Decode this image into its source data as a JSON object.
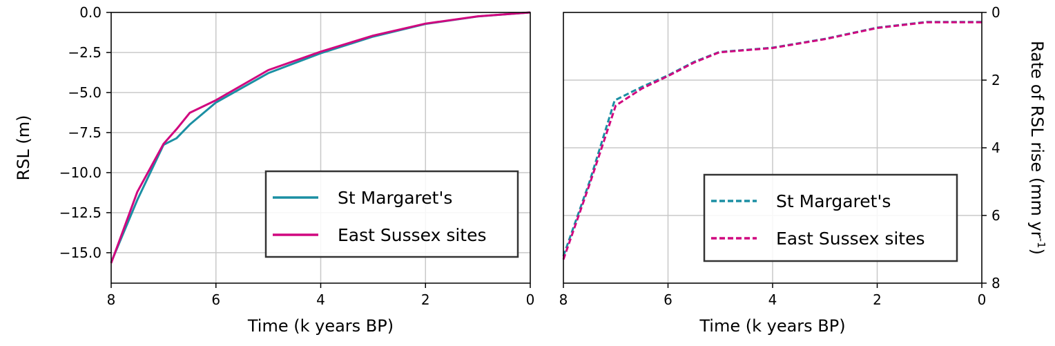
{
  "colors": {
    "teal": "#1b8fa3",
    "pink": "#d0077f",
    "grid": "#c8c8c8"
  },
  "chart_data": [
    {
      "type": "line",
      "xlabel": "Time (k years BP)",
      "ylabel": "RSL (m)",
      "xlim": [
        8,
        0
      ],
      "ylim": [
        -16.9,
        0
      ],
      "xticks": [
        8,
        6,
        4,
        2,
        0
      ],
      "yticks": [
        0,
        -2.5,
        -5,
        -7.5,
        -10,
        -12.5,
        -15
      ],
      "ytick_labels": [
        "0.0",
        "−2.5",
        "−5.0",
        "−7.5",
        "−10.0",
        "−12.5",
        "−15.0"
      ],
      "grid": true,
      "legend_position": "lower-right",
      "series": [
        {
          "name": "St Margaret's",
          "style": "solid",
          "color": "#1b8fa3",
          "x": [
            8,
            7.5,
            7,
            6.75,
            6.5,
            6,
            5,
            4,
            3,
            2,
            1,
            0
          ],
          "y": [
            -15.6,
            -11.7,
            -8.26,
            -7.85,
            -7.0,
            -5.62,
            -3.79,
            -2.55,
            -1.51,
            -0.72,
            -0.25,
            0
          ]
        },
        {
          "name": "East Sussex sites",
          "style": "solid",
          "color": "#d0077f",
          "x": [
            8,
            7.5,
            7,
            6.75,
            6.5,
            6,
            5,
            4,
            3,
            2,
            1,
            0
          ],
          "y": [
            -15.65,
            -11.2,
            -8.2,
            -7.28,
            -6.27,
            -5.48,
            -3.6,
            -2.45,
            -1.45,
            -0.7,
            -0.24,
            0
          ]
        }
      ]
    },
    {
      "type": "line",
      "xlabel": "Time (k years BP)",
      "ylabel": "Rate of RSL rise (mm yr",
      "ylabel_sup": "-1",
      "ylabel_end": ")",
      "xlim": [
        8,
        0
      ],
      "ylim": [
        0,
        8
      ],
      "y_inverted": true,
      "y_axis_side": "right",
      "xticks": [
        8,
        6,
        4,
        2,
        0
      ],
      "yticks": [
        0,
        2,
        4,
        6,
        8
      ],
      "grid": true,
      "legend_position": "lower-right",
      "series": [
        {
          "name": "St Margaret's",
          "style": "dashed",
          "color": "#1b8fa3",
          "x": [
            8,
            7.5,
            7.02,
            6.5,
            6,
            5.5,
            5.02,
            4,
            3,
            2,
            1.05,
            0
          ],
          "y": [
            7.2,
            5.0,
            2.6,
            2.2,
            1.86,
            1.46,
            1.17,
            1.04,
            0.78,
            0.45,
            0.28,
            0.28
          ]
        },
        {
          "name": "East Sussex sites",
          "style": "dashed",
          "color": "#d0077f",
          "x": [
            8,
            7.5,
            7.0,
            6.5,
            6,
            5.5,
            5.02,
            4,
            3,
            2,
            1.05,
            0
          ],
          "y": [
            7.3,
            5.08,
            2.75,
            2.25,
            1.88,
            1.48,
            1.18,
            1.05,
            0.79,
            0.46,
            0.29,
            0.29
          ]
        }
      ]
    }
  ]
}
